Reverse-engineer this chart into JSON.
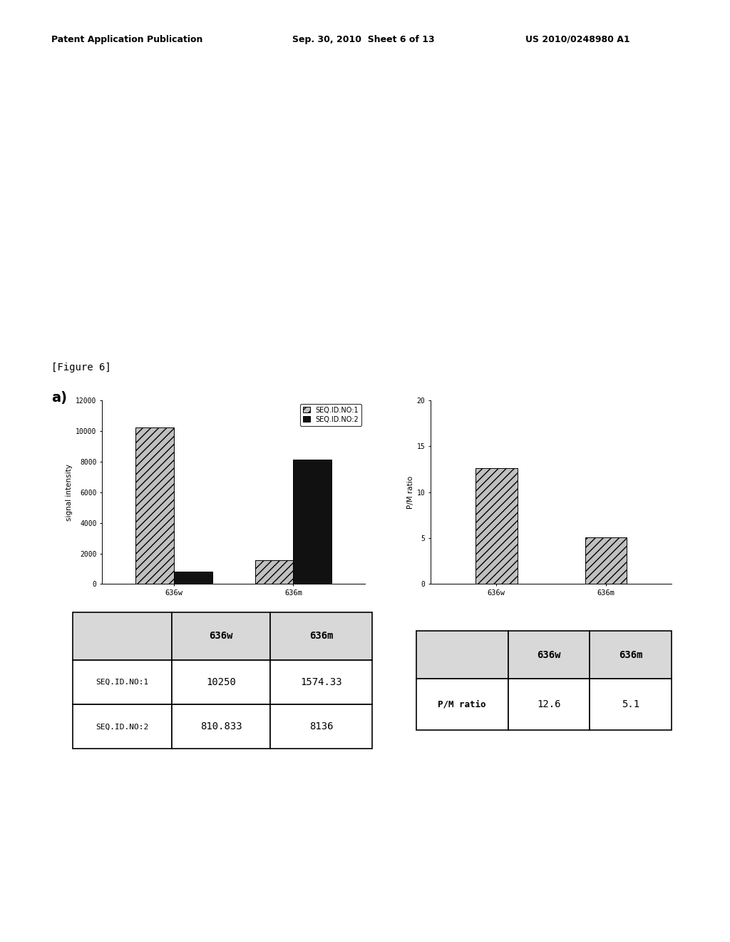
{
  "figure_label": "[Figure 6]",
  "subplot_label": "a)",
  "bar_chart_1": {
    "categories": [
      "636w",
      "636m"
    ],
    "seq1_values": [
      10250,
      1574.33
    ],
    "seq2_values": [
      810.833,
      8136
    ],
    "ylabel": "signal intensity",
    "ylim": [
      0,
      12000
    ],
    "yticks": [
      0,
      2000,
      4000,
      6000,
      8000,
      10000,
      12000
    ],
    "legend_labels": [
      "SEQ.ID.NO:1",
      "SEQ.ID.NO:2"
    ]
  },
  "bar_chart_2": {
    "categories": [
      "636w",
      "636m"
    ],
    "values": [
      12.6,
      5.1
    ],
    "ylabel": "P/M ratio",
    "ylim": [
      0,
      20
    ],
    "yticks": [
      0,
      5,
      10,
      15,
      20
    ]
  },
  "table1": {
    "col_labels": [
      "636w",
      "636m"
    ],
    "row_labels": [
      "SEQ.ID.NO:1",
      "SEQ.ID.NO:2"
    ],
    "data": [
      [
        "10250",
        "1574.33"
      ],
      [
        "810.833",
        "8136"
      ]
    ]
  },
  "table2": {
    "col_labels": [
      "636w",
      "636m"
    ],
    "row_labels": [
      "P/M ratio"
    ],
    "data": [
      [
        "12.6",
        "5.1"
      ]
    ]
  },
  "header_left": "Patent Application Publication",
  "header_mid": "Sep. 30, 2010  Sheet 6 of 13",
  "header_right": "US 2010/0248980 A1",
  "bg_color": "#ffffff",
  "text_color": "#000000"
}
